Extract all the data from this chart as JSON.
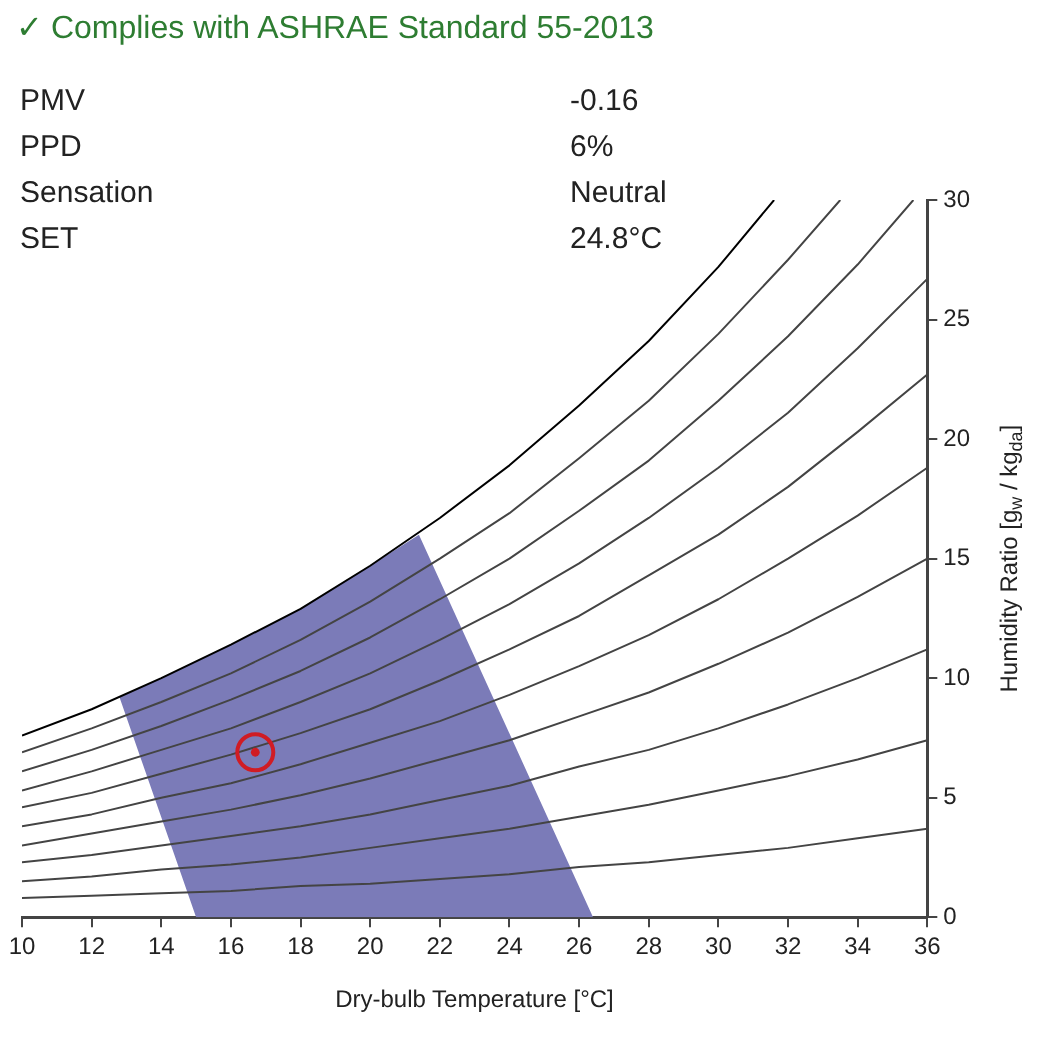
{
  "chart_data": {
    "type": "line",
    "title": "✓ Complies with ASHRAE Standard 55-2013",
    "annotations": [
      "PMV",
      "-0.16",
      "PPD",
      "6%",
      "Sensation",
      "Neutral",
      "SET",
      "24.8°C"
    ],
    "xlabel": "Dry-bulb Temperature [°C]",
    "ylabel": "Humidity Ratio [g$_{w}$ / kg$_{da}$]",
    "xlim": [
      10,
      36
    ],
    "xticks": [
      10,
      12,
      14,
      16,
      18,
      20,
      22,
      24,
      26,
      28,
      30,
      32,
      34,
      36
    ],
    "ylim": [
      0,
      30
    ],
    "yticks": [
      0,
      5,
      10,
      15,
      20,
      25,
      30
    ],
    "grid": false,
    "legend": false,
    "series": [
      {
        "type": "area",
        "color": "#7b7bb8",
        "x": [
          15,
          26.4,
          21.4,
          20,
          18,
          16,
          14,
          12.8
        ],
        "values": [
          0,
          0,
          16.0,
          14.7,
          12.9,
          11.4,
          10.0,
          9.2
        ]
      },
      {
        "color": "#444444",
        "x": [
          10,
          12,
          14,
          16,
          18,
          20,
          22,
          24,
          26,
          28,
          30,
          32,
          34,
          36
        ],
        "values": [
          0.8,
          0.9,
          1.0,
          1.1,
          1.3,
          1.4,
          1.6,
          1.8,
          2.1,
          2.3,
          2.6,
          2.9,
          3.3,
          3.7
        ]
      },
      {
        "color": "#444444",
        "x": [
          10,
          12,
          14,
          16,
          18,
          20,
          22,
          24,
          26,
          28,
          30,
          32,
          34,
          36
        ],
        "values": [
          1.5,
          1.7,
          2.0,
          2.2,
          2.5,
          2.9,
          3.3,
          3.7,
          4.2,
          4.7,
          5.3,
          5.9,
          6.6,
          7.4
        ]
      },
      {
        "color": "#444444",
        "x": [
          10,
          12,
          14,
          16,
          18,
          20,
          22,
          24,
          26,
          28,
          30,
          32,
          34,
          36
        ],
        "values": [
          2.3,
          2.6,
          3.0,
          3.4,
          3.8,
          4.3,
          4.9,
          5.5,
          6.3,
          7.0,
          7.9,
          8.9,
          10.0,
          11.2
        ]
      },
      {
        "color": "#444444",
        "x": [
          10,
          12,
          14,
          16,
          18,
          20,
          22,
          24,
          26,
          28,
          30,
          32,
          34,
          36
        ],
        "values": [
          3.0,
          3.5,
          4.0,
          4.5,
          5.1,
          5.8,
          6.6,
          7.4,
          8.4,
          9.4,
          10.6,
          11.9,
          13.4,
          15.0
        ]
      },
      {
        "color": "#444444",
        "x": [
          10,
          12,
          14,
          16,
          18,
          20,
          22,
          24,
          26,
          28,
          30,
          32,
          34,
          36
        ],
        "values": [
          3.8,
          4.3,
          5.0,
          5.6,
          6.4,
          7.3,
          8.2,
          9.3,
          10.5,
          11.8,
          13.3,
          15.0,
          16.8,
          18.8
        ]
      },
      {
        "color": "#444444",
        "x": [
          10,
          12,
          14,
          16,
          18,
          20,
          22,
          24,
          26,
          28,
          30,
          32,
          34,
          36
        ],
        "values": [
          4.6,
          5.2,
          6.0,
          6.8,
          7.7,
          8.7,
          9.9,
          11.2,
          12.6,
          14.3,
          16.0,
          18.0,
          20.3,
          22.7
        ]
      },
      {
        "color": "#444444",
        "x": [
          10,
          12,
          14,
          16,
          18,
          20,
          22,
          24,
          26,
          28,
          30,
          32,
          34,
          36
        ],
        "values": [
          5.3,
          6.1,
          7.0,
          7.9,
          9.0,
          10.2,
          11.6,
          13.1,
          14.8,
          16.7,
          18.8,
          21.1,
          23.8,
          26.7
        ]
      },
      {
        "color": "#444444",
        "x": [
          10,
          12,
          14,
          16,
          18,
          20,
          22,
          24,
          26,
          28,
          30,
          32,
          34,
          35.6
        ],
        "values": [
          6.1,
          7.0,
          8.0,
          9.1,
          10.3,
          11.7,
          13.3,
          15.0,
          17.0,
          19.1,
          21.6,
          24.3,
          27.3,
          30
        ]
      },
      {
        "color": "#444444",
        "x": [
          10,
          12,
          14,
          16,
          18,
          20,
          22,
          24,
          26,
          28,
          30,
          32,
          33.5
        ],
        "values": [
          6.9,
          7.9,
          9.0,
          10.2,
          11.6,
          13.2,
          15.0,
          16.9,
          19.2,
          21.6,
          24.4,
          27.5,
          30
        ]
      },
      {
        "color": "#000000",
        "x": [
          10,
          12,
          14,
          16,
          18,
          20,
          22,
          24,
          26,
          28,
          30,
          31.6
        ],
        "values": [
          7.6,
          8.7,
          10.0,
          11.4,
          12.9,
          14.7,
          16.7,
          18.9,
          21.4,
          24.1,
          27.2,
          30
        ]
      },
      {
        "type": "scatter",
        "color": "#d01c24",
        "marker": "circle",
        "x": [
          16.7
        ],
        "values": [
          6.9
        ]
      }
    ]
  }
}
